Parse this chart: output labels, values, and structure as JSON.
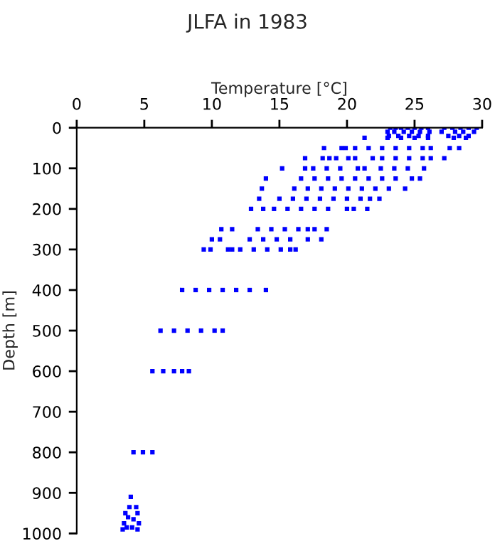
{
  "chart_data": {
    "type": "scatter",
    "title": "JLFA in 1983",
    "xlabel": "Temperature [°C]",
    "ylabel": "Depth [m]",
    "series": [
      {
        "color": "#0000ff",
        "x": [
          23.2,
          23.6,
          24.0,
          24.5,
          25.0,
          25.5,
          26.0,
          27.2,
          27.8,
          28.4,
          29.0,
          29.6,
          23.0,
          23.5,
          24.2,
          24.8,
          25.4,
          26.1,
          27.0,
          28.0,
          28.6,
          29.4,
          23.1,
          23.8,
          24.6,
          25.3,
          26.0,
          27.5,
          28.3,
          29.0,
          21.3,
          23.0,
          24.0,
          25.0,
          26.0,
          27.9,
          28.8,
          18.3,
          19.6,
          19.9,
          20.6,
          21.6,
          22.6,
          23.6,
          24.6,
          25.6,
          26.2,
          27.6,
          28.3,
          16.9,
          18.2,
          18.7,
          19.2,
          20.1,
          20.6,
          21.9,
          22.6,
          23.6,
          24.6,
          25.6,
          26.2,
          27.2,
          15.2,
          16.9,
          17.5,
          18.5,
          19.5,
          20.8,
          21.3,
          22.5,
          23.5,
          24.5,
          25.7,
          14.0,
          16.6,
          17.6,
          18.6,
          19.6,
          20.6,
          21.6,
          22.6,
          23.6,
          24.8,
          25.4,
          13.7,
          16.1,
          17.1,
          18.1,
          19.1,
          20.1,
          21.1,
          22.1,
          23.1,
          24.3,
          13.5,
          15.0,
          16.0,
          17.0,
          18.0,
          19.0,
          20.0,
          21.0,
          21.7,
          22.4,
          12.9,
          13.8,
          14.6,
          15.6,
          16.6,
          17.6,
          18.6,
          20.0,
          20.5,
          21.5,
          10.7,
          11.5,
          13.4,
          14.4,
          15.4,
          16.4,
          17.1,
          17.6,
          18.5,
          10.0,
          10.6,
          12.8,
          13.8,
          14.8,
          15.8,
          17.1,
          18.1,
          9.4,
          9.9,
          11.2,
          11.5,
          12.1,
          13.1,
          14.1,
          15.1,
          15.8,
          16.2,
          7.8,
          8.8,
          9.8,
          10.8,
          11.8,
          12.8,
          14.0,
          6.2,
          7.2,
          8.2,
          9.2,
          10.2,
          10.8,
          5.6,
          6.4,
          7.2,
          7.8,
          8.3,
          4.2,
          4.9,
          5.6,
          4.0,
          3.9,
          4.4,
          3.6,
          4.5,
          3.8,
          4.2,
          3.5,
          4.6,
          3.7,
          4.1,
          4.5,
          3.4
        ],
        "values": [
          0,
          0,
          0,
          0,
          0,
          0,
          0,
          0,
          0,
          0,
          0,
          0,
          10,
          10,
          10,
          10,
          10,
          10,
          10,
          10,
          10,
          10,
          20,
          20,
          20,
          20,
          20,
          20,
          20,
          20,
          25,
          25,
          25,
          25,
          25,
          25,
          25,
          50,
          50,
          50,
          50,
          50,
          50,
          50,
          50,
          50,
          50,
          50,
          50,
          75,
          75,
          75,
          75,
          75,
          75,
          75,
          75,
          75,
          75,
          75,
          75,
          75,
          100,
          100,
          100,
          100,
          100,
          100,
          100,
          100,
          100,
          100,
          100,
          125,
          125,
          125,
          125,
          125,
          125,
          125,
          125,
          125,
          125,
          125,
          150,
          150,
          150,
          150,
          150,
          150,
          150,
          150,
          150,
          150,
          175,
          175,
          175,
          175,
          175,
          175,
          175,
          175,
          175,
          175,
          200,
          200,
          200,
          200,
          200,
          200,
          200,
          200,
          200,
          200,
          250,
          250,
          250,
          250,
          250,
          250,
          250,
          250,
          250,
          275,
          275,
          275,
          275,
          275,
          275,
          275,
          275,
          300,
          300,
          300,
          300,
          300,
          300,
          300,
          300,
          300,
          300,
          400,
          400,
          400,
          400,
          400,
          400,
          400,
          500,
          500,
          500,
          500,
          500,
          500,
          600,
          600,
          600,
          600,
          600,
          800,
          800,
          800,
          910,
          935,
          935,
          950,
          950,
          960,
          965,
          975,
          975,
          985,
          985,
          990,
          990
        ]
      }
    ],
    "xlim": [
      0,
      30
    ],
    "xticks": [
      0,
      5,
      10,
      15,
      20,
      25,
      30
    ],
    "ylim": [
      1000,
      0
    ],
    "yticks": [
      0,
      100,
      200,
      300,
      400,
      500,
      600,
      700,
      800,
      900,
      1000
    ],
    "marker": "square",
    "grid": false,
    "legend": false
  }
}
